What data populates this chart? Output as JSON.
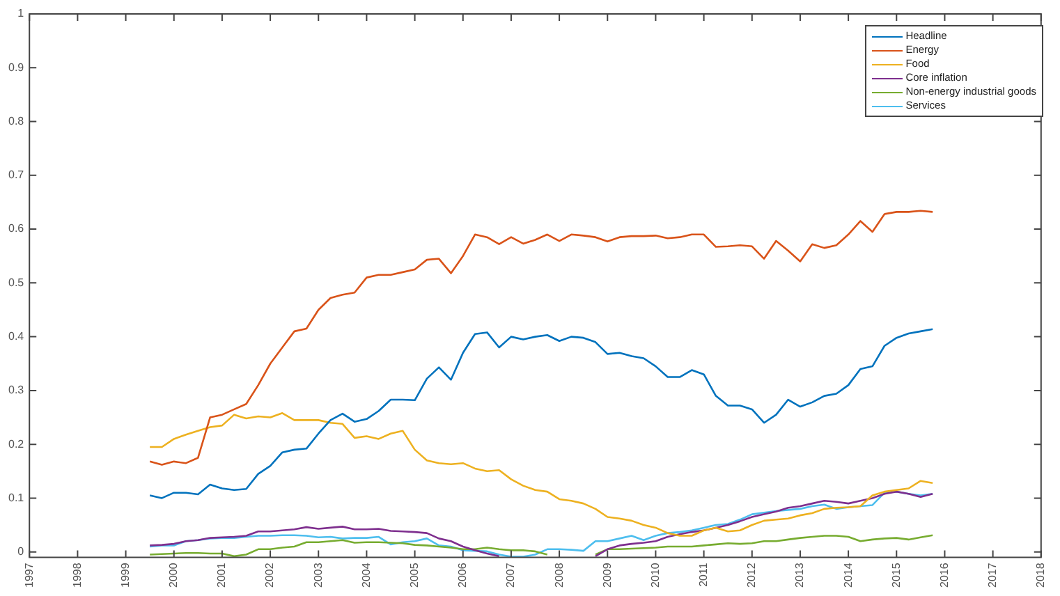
{
  "chart_data": {
    "type": "line",
    "x": [
      1999.5,
      1999.75,
      2000,
      2000.25,
      2000.5,
      2000.75,
      2001,
      2001.25,
      2001.5,
      2001.75,
      2002,
      2002.25,
      2002.5,
      2002.75,
      2003,
      2003.25,
      2003.5,
      2003.75,
      2004,
      2004.25,
      2004.5,
      2004.75,
      2005,
      2005.25,
      2005.5,
      2005.75,
      2006,
      2006.25,
      2006.5,
      2006.75,
      2007,
      2007.25,
      2007.5,
      2007.75,
      2008,
      2008.25,
      2008.5,
      2008.75,
      2009,
      2009.25,
      2009.5,
      2009.75,
      2010,
      2010.25,
      2010.5,
      2010.75,
      2011,
      2011.25,
      2011.5,
      2011.75,
      2012,
      2012.25,
      2012.5,
      2012.75,
      2013,
      2013.25,
      2013.5,
      2013.75,
      2014,
      2014.25,
      2014.5,
      2014.75,
      2015,
      2015.25,
      2015.5,
      2015.75
    ],
    "series": [
      {
        "name": "Headline",
        "color": "#0072bd",
        "values": [
          0.105,
          0.1,
          0.11,
          0.11,
          0.107,
          0.125,
          0.118,
          0.115,
          0.117,
          0.145,
          0.16,
          0.185,
          0.19,
          0.192,
          0.22,
          0.245,
          0.257,
          0.242,
          0.247,
          0.262,
          0.283,
          0.283,
          0.282,
          0.322,
          0.343,
          0.32,
          0.37,
          0.405,
          0.408,
          0.38,
          0.4,
          0.395,
          0.4,
          0.403,
          0.392,
          0.4,
          0.398,
          0.39,
          0.368,
          0.37,
          0.364,
          0.36,
          0.345,
          0.325,
          0.325,
          0.338,
          0.33,
          0.29,
          0.272,
          0.272,
          0.265,
          0.24,
          0.255,
          0.283,
          0.27,
          0.278,
          0.29,
          0.294,
          0.31,
          0.34,
          0.345,
          0.383,
          0.398,
          0.406,
          0.41,
          0.414
        ]
      },
      {
        "name": "Energy",
        "color": "#d95319",
        "values": [
          0.168,
          0.162,
          0.168,
          0.165,
          0.175,
          0.25,
          0.255,
          0.265,
          0.275,
          0.31,
          0.35,
          0.38,
          0.41,
          0.415,
          0.45,
          0.472,
          0.478,
          0.482,
          0.51,
          0.515,
          0.515,
          0.52,
          0.525,
          0.543,
          0.545,
          0.518,
          0.55,
          0.59,
          0.585,
          0.572,
          0.585,
          0.573,
          0.58,
          0.59,
          0.578,
          0.59,
          0.588,
          0.585,
          0.577,
          0.585,
          0.587,
          0.587,
          0.588,
          0.583,
          0.585,
          0.59,
          0.59,
          0.567,
          0.568,
          0.57,
          0.568,
          0.545,
          0.578,
          0.56,
          0.54,
          0.572,
          0.565,
          0.57,
          0.59,
          0.615,
          0.595,
          0.628,
          0.632,
          0.632,
          0.634,
          0.632
        ]
      },
      {
        "name": "Food",
        "color": "#edb120",
        "values": [
          0.195,
          0.195,
          0.21,
          0.218,
          0.225,
          0.232,
          0.235,
          0.255,
          0.248,
          0.252,
          0.25,
          0.258,
          0.245,
          0.245,
          0.245,
          0.24,
          0.238,
          0.212,
          0.215,
          0.21,
          0.22,
          0.225,
          0.19,
          0.17,
          0.165,
          0.163,
          0.165,
          0.155,
          0.15,
          0.152,
          0.135,
          0.123,
          0.115,
          0.112,
          0.098,
          0.095,
          0.09,
          0.08,
          0.065,
          0.062,
          0.058,
          0.05,
          0.045,
          0.035,
          0.03,
          0.03,
          0.04,
          0.045,
          0.038,
          0.04,
          0.05,
          0.058,
          0.06,
          0.062,
          0.068,
          0.072,
          0.08,
          0.082,
          0.083,
          0.085,
          0.105,
          0.112,
          0.115,
          0.118,
          0.132,
          0.128
        ]
      },
      {
        "name": "Core inflation",
        "color": "#7e2f8e",
        "values": [
          0.012,
          0.013,
          0.015,
          0.02,
          0.022,
          0.026,
          0.027,
          0.028,
          0.03,
          0.038,
          0.038,
          0.04,
          0.042,
          0.046,
          0.043,
          0.045,
          0.047,
          0.042,
          0.042,
          0.043,
          0.039,
          0.038,
          0.037,
          0.035,
          0.025,
          0.02,
          0.01,
          0.003,
          -0.003,
          -0.008,
          null,
          null,
          null,
          null,
          null,
          null,
          null,
          -0.008,
          0.005,
          0.012,
          0.015,
          0.017,
          0.02,
          0.028,
          0.033,
          0.037,
          0.04,
          0.045,
          0.05,
          0.057,
          0.065,
          0.07,
          0.075,
          0.082,
          0.085,
          0.09,
          0.095,
          0.093,
          0.09,
          0.095,
          0.1,
          0.108,
          0.112,
          0.108,
          0.102,
          0.108
        ]
      },
      {
        "name": "Non-energy industrial goods",
        "color": "#77ac30",
        "values": [
          -0.005,
          -0.004,
          -0.003,
          -0.002,
          -0.002,
          -0.003,
          -0.003,
          -0.008,
          -0.005,
          0.005,
          0.005,
          0.008,
          0.01,
          0.018,
          0.018,
          0.02,
          0.022,
          0.017,
          0.018,
          0.018,
          0.017,
          0.016,
          0.013,
          0.012,
          0.01,
          0.008,
          0.005,
          0.005,
          0.008,
          0.005,
          0.003,
          0.003,
          0.001,
          -0.005,
          null,
          null,
          null,
          -0.005,
          0.005,
          0.005,
          0.006,
          0.007,
          0.008,
          0.01,
          0.01,
          0.01,
          0.012,
          0.014,
          0.016,
          0.015,
          0.016,
          0.02,
          0.02,
          0.023,
          0.026,
          0.028,
          0.03,
          0.03,
          0.028,
          0.02,
          0.023,
          0.025,
          0.026,
          0.023,
          0.027,
          0.031
        ]
      },
      {
        "name": "Services",
        "color": "#4dbeee",
        "values": [
          0.01,
          0.012,
          0.012,
          0.02,
          0.022,
          0.025,
          0.026,
          0.026,
          0.028,
          0.03,
          0.03,
          0.031,
          0.031,
          0.03,
          0.027,
          0.028,
          0.025,
          0.026,
          0.026,
          0.028,
          0.014,
          0.018,
          0.02,
          0.025,
          0.012,
          0.01,
          0.003,
          0.002,
          0.001,
          -0.005,
          -0.009,
          -0.009,
          -0.005,
          0.005,
          0.005,
          0.004,
          0.002,
          0.02,
          0.02,
          0.025,
          0.03,
          0.022,
          0.03,
          0.035,
          0.037,
          0.04,
          0.045,
          0.05,
          0.052,
          0.06,
          0.07,
          0.073,
          0.076,
          0.078,
          0.08,
          0.085,
          0.088,
          0.08,
          0.083,
          0.085,
          0.087,
          0.11,
          0.112,
          0.108,
          0.105,
          0.108
        ]
      }
    ],
    "xlim": [
      1997,
      2018
    ],
    "xticks": [
      1997,
      1998,
      1999,
      2000,
      2001,
      2002,
      2003,
      2004,
      2005,
      2006,
      2007,
      2008,
      2009,
      2010,
      2011,
      2012,
      2013,
      2014,
      2015,
      2016,
      2017,
      2018
    ],
    "ylim": [
      -0.01,
      1
    ],
    "yticks": [
      0,
      0.1,
      0.2,
      0.3,
      0.4,
      0.5,
      0.6,
      0.7,
      0.8,
      0.9,
      1
    ],
    "legend": "top right",
    "marker": "none",
    "line_style": "solid"
  }
}
